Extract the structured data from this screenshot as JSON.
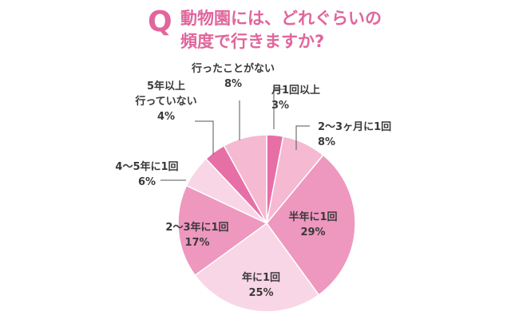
{
  "question": {
    "mark": "Q",
    "line1": "動物園には、どれぐらいの",
    "line2": "頻度で行きますか?"
  },
  "chart_data": {
    "type": "pie",
    "title": "動物園には、どれぐらいの頻度で行きますか?",
    "slices": [
      {
        "label": "月1回以上",
        "value": 3,
        "display": "3%",
        "color": "#e66fa6"
      },
      {
        "label": "2〜3ヶ月に1回",
        "value": 8,
        "display": "8%",
        "color": "#f5b9d2"
      },
      {
        "label": "半年に1回",
        "value": 29,
        "display": "29%",
        "color": "#ee97bf"
      },
      {
        "label": "年に1回",
        "value": 25,
        "display": "25%",
        "color": "#f9d6e5"
      },
      {
        "label": "2〜3年に1回",
        "value": 17,
        "display": "17%",
        "color": "#ee97bf"
      },
      {
        "label": "4〜5年に1回",
        "value": 6,
        "display": "6%",
        "color": "#f9d6e5"
      },
      {
        "label": "5年以上行っていない",
        "value": 4,
        "display": "4%",
        "color": "#e66fa6"
      },
      {
        "label": "行ったことがない",
        "value": 8,
        "display": "8%",
        "color": "#f5b9d2"
      }
    ]
  }
}
